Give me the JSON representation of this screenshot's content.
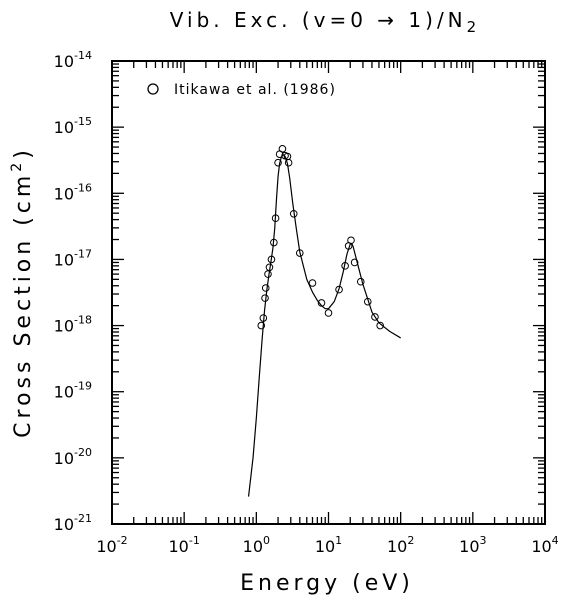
{
  "chart_data": {
    "type": "scatter",
    "title": "Vib. Exc. (v=0 → 1)/N",
    "title_subscript": "2",
    "xlabel": "Energy (eV)",
    "ylabel": "Cross Section (cm",
    "ylabel_sup": "2",
    "ylabel_end": ")",
    "x_scale": "log",
    "y_scale": "log",
    "xlim": [
      0.01,
      10000
    ],
    "ylim": [
      1e-21,
      1e-14
    ],
    "x_ticks": [
      {
        "value": 0.01,
        "base": "10",
        "exp": "-2"
      },
      {
        "value": 0.1,
        "base": "10",
        "exp": "-1"
      },
      {
        "value": 1,
        "base": "10",
        "exp": "0"
      },
      {
        "value": 10,
        "base": "10",
        "exp": "1"
      },
      {
        "value": 100,
        "base": "10",
        "exp": "2"
      },
      {
        "value": 1000,
        "base": "10",
        "exp": "3"
      },
      {
        "value": 10000,
        "base": "10",
        "exp": "4"
      }
    ],
    "y_ticks": [
      {
        "value": 1e-14,
        "base": "10",
        "exp": "-14"
      },
      {
        "value": 1e-15,
        "base": "10",
        "exp": "-15"
      },
      {
        "value": 1e-16,
        "base": "10",
        "exp": "-16"
      },
      {
        "value": 1e-17,
        "base": "10",
        "exp": "-17"
      },
      {
        "value": 1e-18,
        "base": "10",
        "exp": "-18"
      },
      {
        "value": 1e-19,
        "base": "10",
        "exp": "-19"
      },
      {
        "value": 1e-20,
        "base": "10",
        "exp": "-20"
      },
      {
        "value": 1e-21,
        "base": "10",
        "exp": "-21"
      }
    ],
    "legend_position": "top-left",
    "grid": false,
    "series": [
      {
        "name": "Itikawa et al. (1986)",
        "style": "open-circles",
        "points": [
          [
            1.17,
            1e-18
          ],
          [
            1.25,
            1.3e-18
          ],
          [
            1.32,
            2.6e-18
          ],
          [
            1.35,
            3.7e-18
          ],
          [
            1.45,
            6e-18
          ],
          [
            1.52,
            7.6e-18
          ],
          [
            1.62,
            1e-17
          ],
          [
            1.75,
            1.8e-17
          ],
          [
            1.85,
            4.2e-17
          ],
          [
            2.0,
            2.9e-16
          ],
          [
            2.1,
            3.9e-16
          ],
          [
            2.3,
            4.7e-16
          ],
          [
            2.5,
            3.7e-16
          ],
          [
            2.7,
            3.6e-16
          ],
          [
            2.8,
            2.9e-16
          ],
          [
            3.3,
            4.9e-17
          ],
          [
            4.0,
            1.25e-17
          ],
          [
            6.0,
            4.4e-18
          ],
          [
            8.0,
            2.2e-18
          ],
          [
            10.0,
            1.55e-18
          ],
          [
            14.0,
            3.5e-18
          ],
          [
            17.0,
            8e-18
          ],
          [
            19.0,
            1.6e-17
          ],
          [
            20.5,
            1.95e-17
          ],
          [
            23.0,
            9e-18
          ],
          [
            28.0,
            4.6e-18
          ],
          [
            35.0,
            2.3e-18
          ],
          [
            44.0,
            1.35e-18
          ],
          [
            52.0,
            1e-18
          ]
        ]
      },
      {
        "name": "",
        "style": "line",
        "points": [
          [
            0.78,
            2.6e-21
          ],
          [
            0.9,
            1e-20
          ],
          [
            1.0,
            4e-20
          ],
          [
            1.1,
            1.7e-19
          ],
          [
            1.2,
            6e-19
          ],
          [
            1.3,
            1.7e-18
          ],
          [
            1.4,
            3.5e-18
          ],
          [
            1.5,
            6e-18
          ],
          [
            1.6,
            9.5e-18
          ],
          [
            1.7,
            1.5e-17
          ],
          [
            1.8,
            3e-17
          ],
          [
            1.9,
            8e-17
          ],
          [
            2.0,
            1.8e-16
          ],
          [
            2.1,
            2.8e-16
          ],
          [
            2.2,
            3.4e-16
          ],
          [
            2.3,
            3.75e-16
          ],
          [
            2.4,
            3.8e-16
          ],
          [
            2.5,
            3.6e-16
          ],
          [
            2.7,
            2.8e-16
          ],
          [
            2.9,
            1.7e-16
          ],
          [
            3.2,
            7e-17
          ],
          [
            3.6,
            2.8e-17
          ],
          [
            4.0,
            1.3e-17
          ],
          [
            5.0,
            5e-18
          ],
          [
            6.0,
            3.2e-18
          ],
          [
            7.0,
            2.4e-18
          ],
          [
            8.0,
            2e-18
          ],
          [
            9.0,
            1.8e-18
          ],
          [
            10.0,
            1.8e-18
          ],
          [
            12.0,
            2.3e-18
          ],
          [
            14.0,
            3.6e-18
          ],
          [
            16.0,
            6.5e-18
          ],
          [
            18.0,
            1.2e-17
          ],
          [
            20.0,
            1.7e-17
          ],
          [
            21.0,
            1.75e-17
          ],
          [
            22.0,
            1.55e-17
          ],
          [
            25.0,
            9e-18
          ],
          [
            30.0,
            4.2e-18
          ],
          [
            40.0,
            1.6e-18
          ],
          [
            50.0,
            1.1e-18
          ],
          [
            70.0,
            8.2e-19
          ],
          [
            100.0,
            6.5e-19
          ]
        ]
      }
    ]
  }
}
